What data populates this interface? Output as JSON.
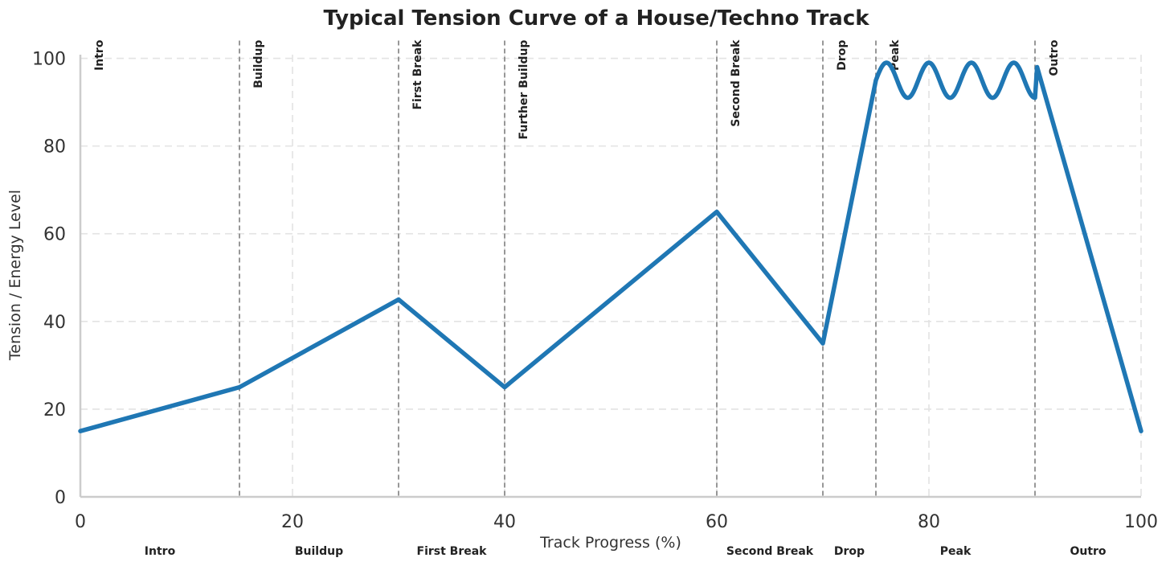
{
  "chart_data": {
    "type": "line",
    "title": "Typical Tension Curve of a House/Techno Track",
    "xlabel": "Track Progress (%)",
    "ylabel": "Tension / Energy Level",
    "xlim": [
      0,
      100
    ],
    "ylim": [
      0,
      110
    ],
    "x_ticks": [
      0,
      20,
      40,
      60,
      80,
      100
    ],
    "y_ticks": [
      0,
      20,
      40,
      60,
      80,
      100
    ],
    "grid": true,
    "legend": "none",
    "line_color": "#1f77b4",
    "series": [
      {
        "x": [
          0,
          15,
          30,
          40,
          60,
          70,
          75,
          76,
          78,
          80,
          82,
          84,
          86,
          88,
          90,
          90.2,
          100
        ],
        "y": [
          15,
          25,
          45,
          25,
          65,
          35,
          95,
          99,
          91,
          99,
          91,
          99,
          91,
          99,
          93,
          98,
          15
        ]
      }
    ],
    "peak_wave": {
      "x_start": 75,
      "x_end": 90,
      "center": 95,
      "amplitude": 4,
      "cycles": 3.75
    },
    "sections": [
      {
        "name": "Intro",
        "start": 0
      },
      {
        "name": "Buildup",
        "start": 15
      },
      {
        "name": "First Break",
        "start": 30
      },
      {
        "name": "Further Buildup",
        "start": 40
      },
      {
        "name": "Second Break",
        "start": 60
      },
      {
        "name": "Drop",
        "start": 70
      },
      {
        "name": "Peak",
        "start": 75
      },
      {
        "name": "Outro",
        "start": 90
      }
    ],
    "bottom_labels": [
      {
        "name": "Intro",
        "x": 7.5
      },
      {
        "name": "Buildup",
        "x": 22.5
      },
      {
        "name": "First Break",
        "x": 35
      },
      {
        "name": "Second Break",
        "x": 65
      },
      {
        "name": "Drop",
        "x": 72.5
      },
      {
        "name": "Peak",
        "x": 82.5
      },
      {
        "name": "Outro",
        "x": 95
      }
    ]
  }
}
